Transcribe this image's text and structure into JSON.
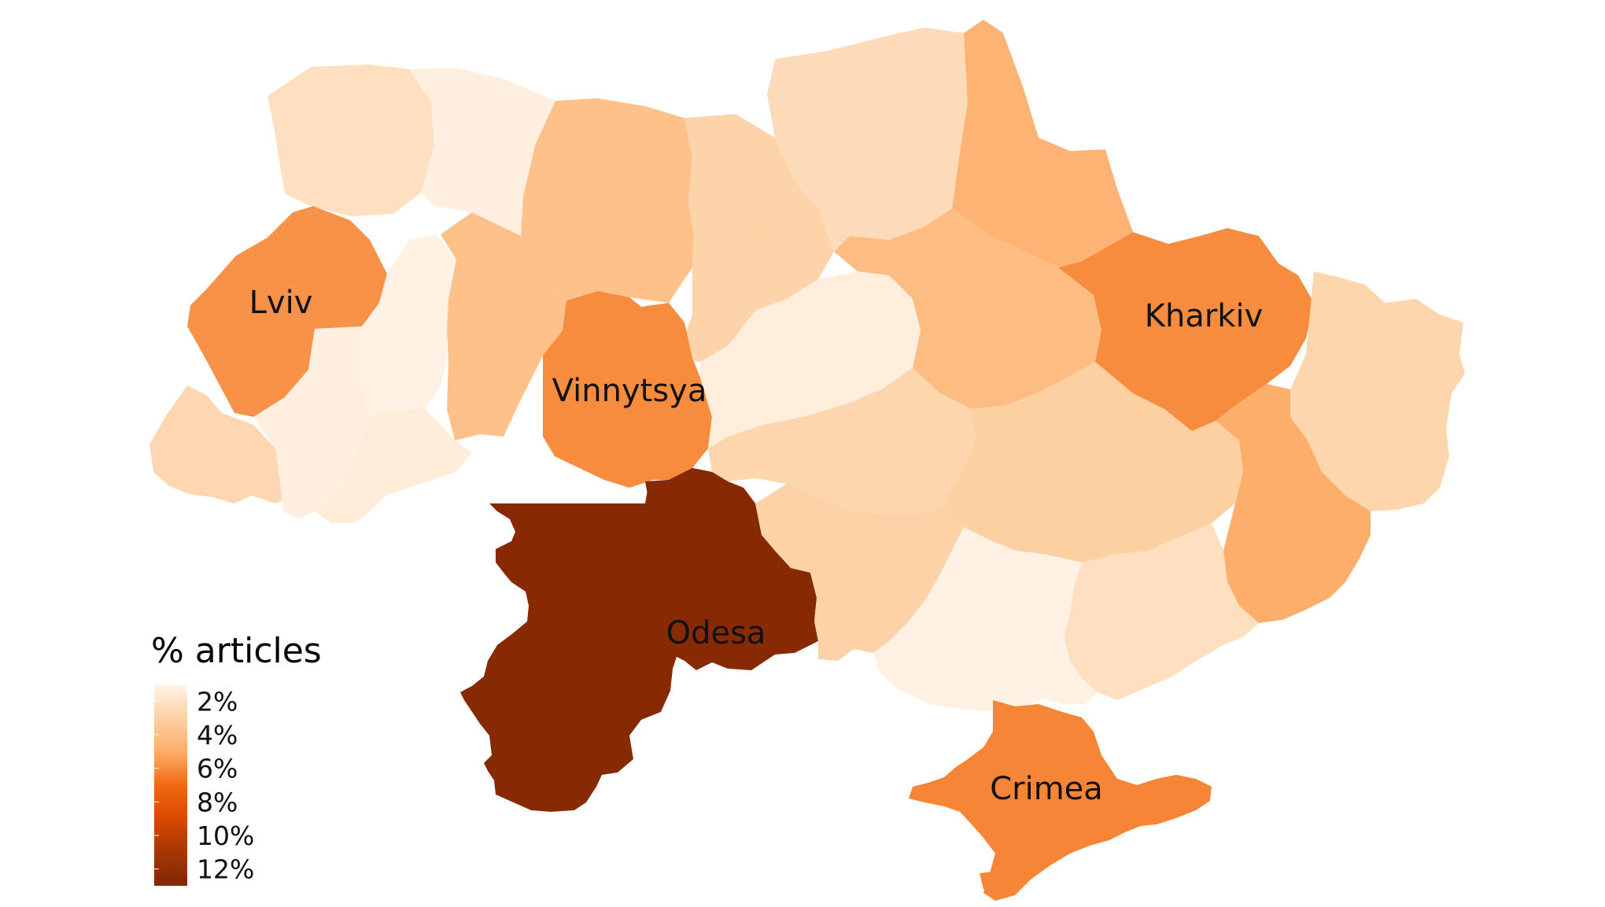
{
  "map": {
    "regions": [
      {
        "id": "volyn",
        "value": 2.2
      },
      {
        "id": "rivne",
        "value": 1.3
      },
      {
        "id": "zhytomyr",
        "value": 3.9
      },
      {
        "id": "kyiv-oblast",
        "value": 2.8
      },
      {
        "id": "kyiv-city",
        "value": 2.9
      },
      {
        "id": "chernihiv",
        "value": 2.4
      },
      {
        "id": "sumy",
        "value": 4.7
      },
      {
        "id": "lviv",
        "value": 5.8,
        "label": "Lviv"
      },
      {
        "id": "ternopil",
        "value": 1.2
      },
      {
        "id": "khmelnytskyi",
        "value": 3.9
      },
      {
        "id": "vinnytsya",
        "value": 6.0,
        "label": "Vinnytsya"
      },
      {
        "id": "cherkasy",
        "value": 1.4
      },
      {
        "id": "poltava",
        "value": 4.2
      },
      {
        "id": "kharkiv",
        "value": 6.0,
        "label": "Kharkiv"
      },
      {
        "id": "luhansk",
        "value": 2.7
      },
      {
        "id": "zakarpattia",
        "value": 2.6
      },
      {
        "id": "ivano-frankivsk",
        "value": 1.3
      },
      {
        "id": "chernivtsi",
        "value": 1.5
      },
      {
        "id": "kirovohrad",
        "value": 2.7
      },
      {
        "id": "dnipropetrovsk",
        "value": 3.0
      },
      {
        "id": "donetsk",
        "value": 5.0
      },
      {
        "id": "odesa",
        "value": 12.6,
        "label": "Odesa",
        "highlight": true
      },
      {
        "id": "mykolaiv",
        "value": 2.9
      },
      {
        "id": "zaporizhzhia",
        "value": 2.2
      },
      {
        "id": "kherson",
        "value": 1.2
      },
      {
        "id": "crimea",
        "value": 6.2,
        "label": "Crimea"
      }
    ],
    "label_color": "#111111",
    "highlight_label_color": "#ee1111"
  },
  "legend": {
    "title": "% articles",
    "ticks": [
      {
        "value": 2,
        "label": "2%"
      },
      {
        "value": 4,
        "label": "4%"
      },
      {
        "value": 6,
        "label": "6%"
      },
      {
        "value": 8,
        "label": "8%"
      },
      {
        "value": 10,
        "label": "10%"
      },
      {
        "value": 12,
        "label": "12%"
      }
    ],
    "scale_min": 1,
    "scale_max": 13,
    "color_stops": [
      "#fff5eb",
      "#fdd0a2",
      "#fdae6b",
      "#f16913",
      "#d94801",
      "#a63603",
      "#7f2704"
    ]
  }
}
